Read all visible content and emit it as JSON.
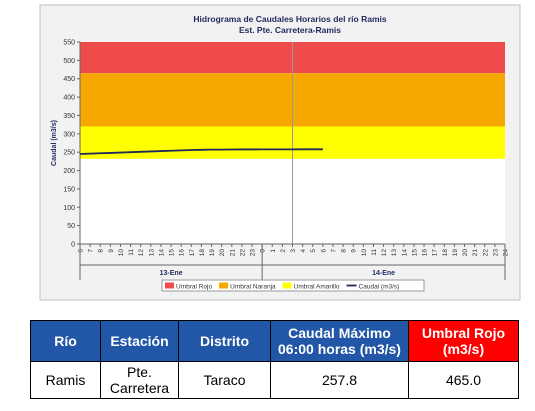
{
  "chart_data": {
    "type": "line",
    "title": "Hidrograma de Caudales Horarios del río Ramis",
    "subtitle": "Est. Pte. Carretera-Ramis",
    "y_label": "Caudal (m3/s)",
    "categories": [
      "6",
      "7",
      "8",
      "9",
      "10",
      "11",
      "12",
      "13",
      "14",
      "15",
      "16",
      "17",
      "18",
      "19",
      "20",
      "21",
      "22",
      "23",
      "0",
      "1",
      "2",
      "3",
      "4",
      "5",
      "6",
      "7",
      "8",
      "9",
      "10",
      "11",
      "12",
      "13",
      "14",
      "15",
      "16",
      "17",
      "18",
      "19",
      "20",
      "21",
      "22",
      "23",
      "24"
    ],
    "day_labels": [
      "13-Ene",
      "14-Ene"
    ],
    "ylim": [
      0,
      550
    ],
    "yticks": [
      0,
      50,
      100,
      150,
      200,
      250,
      300,
      350,
      400,
      450,
      500,
      550
    ],
    "bands": [
      {
        "name": "Umbral Rojo",
        "color": "#f04b4b",
        "low": 465,
        "high": 550
      },
      {
        "name": "Umbral Naranja",
        "color": "#f7a800",
        "low": 320,
        "high": 465
      },
      {
        "name": "Umbral Amarillo",
        "color": "#ffff00",
        "low": 232,
        "high": 320
      }
    ],
    "series": [
      {
        "name": "Caudal (m3/s)",
        "color": "#1f2a5c",
        "values": [
          245,
          246,
          247,
          248,
          249,
          250,
          251,
          252,
          253,
          254,
          255,
          256,
          256.5,
          257,
          257,
          257.3,
          257.5,
          257.5,
          257.6,
          257.6,
          257.7,
          257.7,
          257.8,
          257.8,
          257.8,
          null,
          null,
          null,
          null,
          null,
          null,
          null,
          null,
          null,
          null,
          null,
          null,
          null,
          null,
          null,
          null,
          null,
          null
        ]
      }
    ]
  },
  "table": {
    "header": [
      "Río",
      "Estación",
      "Distrito",
      "Caudal Máximo 06:00 horas (m3/s)",
      "Umbral Rojo (m3/s)"
    ],
    "rows": [
      [
        "Ramis",
        "Pte. Carretera",
        "Taraco",
        "257.8",
        "465.0"
      ]
    ]
  }
}
